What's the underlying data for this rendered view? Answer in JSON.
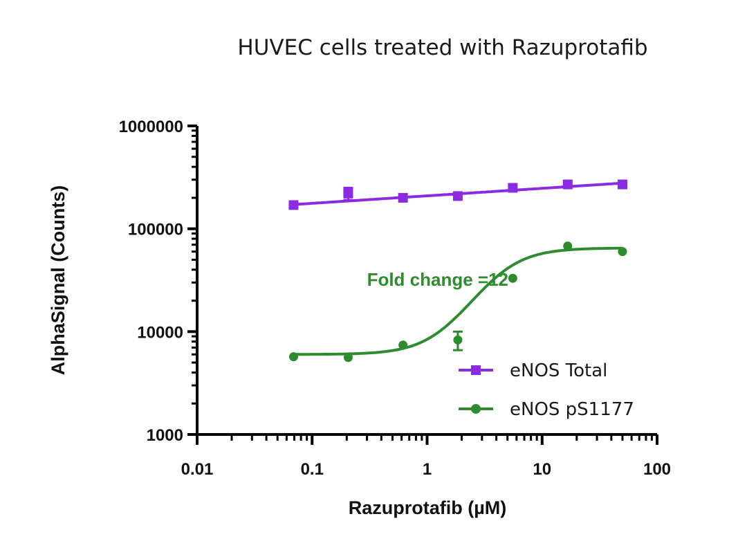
{
  "chart_data": {
    "type": "scatter",
    "title": "HUVEC cells treated with Razuprotafib",
    "xlabel": "Razuprotafib (µM)",
    "ylabel": "AlphaSignal (Counts)",
    "xscale": "log",
    "yscale": "log",
    "xlim": [
      0.01,
      100
    ],
    "ylim": [
      1000,
      1000000
    ],
    "x_ticks": [
      0.01,
      0.1,
      1,
      10,
      100
    ],
    "x_tick_labels": [
      "0.01",
      "0.1",
      "1",
      "10",
      "100"
    ],
    "y_ticks": [
      1000,
      10000,
      100000,
      1000000
    ],
    "y_tick_labels": [
      "1000",
      "10000",
      "100000",
      "1000000"
    ],
    "legend_position": "bottom-right",
    "series": [
      {
        "name": "eNOS Total",
        "color": "#8a2be2",
        "marker": "square",
        "x": [
          0.069,
          0.206,
          0.617,
          1.85,
          5.56,
          16.7,
          50
        ],
        "y": [
          170000,
          220000,
          200000,
          208000,
          250000,
          270000,
          270000
        ],
        "error": [
          0,
          30000,
          0,
          0,
          0,
          0,
          0
        ],
        "fit": {
          "type": "log-linear",
          "y_start": 172000,
          "y_end": 278000
        }
      },
      {
        "name": "eNOS pS1177",
        "color": "#2e8b2e",
        "marker": "circle",
        "x": [
          0.069,
          0.206,
          0.617,
          1.85,
          5.56,
          16.7,
          50
        ],
        "y": [
          5700,
          5600,
          7400,
          8300,
          33000,
          68000,
          60000
        ],
        "error": [
          0,
          0,
          0,
          1700,
          0,
          0,
          0
        ],
        "fit": {
          "type": "sigmoid",
          "bottom": 6000,
          "top": 65000,
          "ec50": 4.2,
          "hill": 2.2
        }
      }
    ],
    "annotations": [
      {
        "text": "Fold change =12",
        "x": 0.3,
        "y": 28000,
        "color": "#2e8b2e"
      }
    ]
  }
}
